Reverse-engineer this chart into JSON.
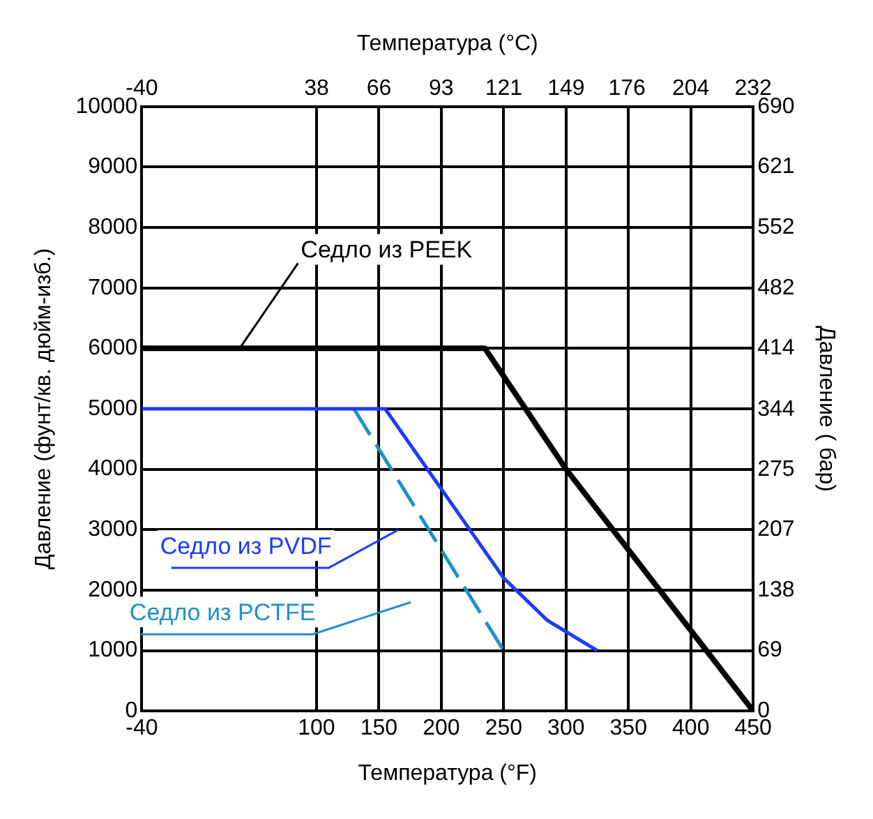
{
  "chart_data": {
    "type": "line",
    "xlabel": "Температура (°F)",
    "x2label": "Температура (°C)",
    "ylabel": "Давление (фунт/кв. дюйм-изб.)",
    "y2label": "Давление ( бар)",
    "xlim": [
      -40,
      450
    ],
    "xticks": [
      -40,
      100,
      150,
      200,
      250,
      300,
      350,
      400,
      450
    ],
    "x2lim": [
      -40,
      232.2
    ],
    "x2ticks": [
      -40,
      {
        "value": 37.8,
        "label": "38"
      },
      {
        "value": 65.6,
        "label": "66"
      },
      {
        "value": 93.3,
        "label": "93"
      },
      {
        "value": 121.1,
        "label": "121"
      },
      {
        "value": 148.9,
        "label": "149"
      },
      {
        "value": 176,
        "label": "176"
      },
      {
        "value": 204.4,
        "label": "204"
      },
      {
        "value": 232.2,
        "label": "232"
      }
    ],
    "ylim": [
      0,
      10000
    ],
    "yticks": [
      0,
      1000,
      2000,
      3000,
      4000,
      5000,
      6000,
      7000,
      8000,
      9000,
      10000
    ],
    "y2lim": [
      0,
      689.5
    ],
    "y2ticks": [
      0,
      {
        "value": 68.9,
        "label": "69"
      },
      {
        "value": 137.9,
        "label": "138"
      },
      {
        "value": 206.8,
        "label": "207"
      },
      {
        "value": 275,
        "label": "275"
      },
      {
        "value": 344,
        "label": "344"
      },
      {
        "value": 413.7,
        "label": "414"
      },
      {
        "value": 482,
        "label": "482"
      },
      {
        "value": 551.6,
        "label": "552"
      },
      {
        "value": 620.5,
        "label": "621"
      },
      {
        "value": 689.5,
        "label": "690"
      }
    ],
    "grid": true,
    "legend": false,
    "marker": "none",
    "series": [
      {
        "name": "Седло из PEEK",
        "color": "#000000",
        "x": [
          -40,
          235,
          300,
          450
        ],
        "values": [
          6000,
          6000,
          4000,
          0
        ]
      },
      {
        "name": "Седло из PVDF",
        "color": "#1a3cff",
        "x": [
          -40,
          155,
          250,
          285,
          325
        ],
        "values": [
          5000,
          5000,
          2200,
          1500,
          1000
        ]
      },
      {
        "name": "Седло из PCTFE",
        "color": "#1e90c8",
        "line_style": "dashed",
        "x": [
          130,
          250
        ],
        "values": [
          5000,
          1000
        ]
      }
    ]
  }
}
